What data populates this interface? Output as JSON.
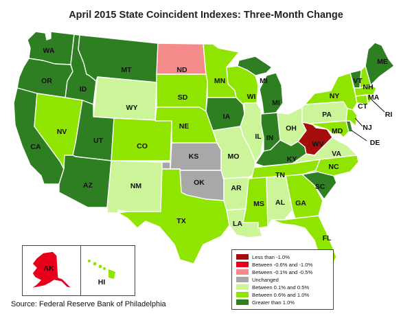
{
  "title": "April 2015 State Coincident Indexes: Three-Month Change",
  "source": "Source: Federal Reserve Bank of Philadelphia",
  "colors": {
    "lt_neg1": "#a50d0d",
    "neg06_neg1": "#e8001a",
    "neg01_neg05": "#f48a8a",
    "unchanged": "#a8a8a8",
    "pos01_05": "#ccf59a",
    "pos06_1": "#8fe400",
    "gt_1": "#2e7f22"
  },
  "legend": [
    {
      "key": "lt_neg1",
      "label": "Less than -1.0%"
    },
    {
      "key": "neg06_neg1",
      "label": "Between -0.6% and -1.0%"
    },
    {
      "key": "neg01_neg05",
      "label": "Between -0.1% and -0.5%"
    },
    {
      "key": "unchanged",
      "label": "Unchanged"
    },
    {
      "key": "pos01_05",
      "label": "Between 0.1% and 0.5%"
    },
    {
      "key": "pos06_1",
      "label": "Between 0.6% and 1.0%"
    },
    {
      "key": "gt_1",
      "label": "Greater than 1.0%"
    }
  ],
  "states": {
    "WA": "gt_1",
    "OR": "gt_1",
    "CA": "gt_1",
    "ID": "gt_1",
    "NV": "pos06_1",
    "MT": "gt_1",
    "WY": "pos01_05",
    "UT": "gt_1",
    "AZ": "gt_1",
    "CO": "pos06_1",
    "NM": "pos01_05",
    "ND": "neg01_neg05",
    "SD": "pos06_1",
    "NE": "pos06_1",
    "KS": "unchanged",
    "OK": "unchanged",
    "TX": "pos06_1",
    "MN": "pos06_1",
    "IA": "gt_1",
    "MO": "pos01_05",
    "AR": "pos01_05",
    "LA": "pos01_05",
    "WI": "pos06_1",
    "IL": "pos01_05",
    "MI": "gt_1",
    "IN": "gt_1",
    "OH": "pos01_05",
    "KY": "gt_1",
    "TN": "pos06_1",
    "MS": "pos06_1",
    "AL": "pos01_05",
    "GA": "pos06_1",
    "FL": "pos06_1",
    "SC": "gt_1",
    "NC": "pos06_1",
    "VA": "pos01_05",
    "WV": "lt_neg1",
    "PA": "pos01_05",
    "NY": "pos06_1",
    "MD": "pos06_1",
    "DE": "gt_1",
    "NJ": "pos06_1",
    "CT": "pos06_1",
    "RI": "pos06_1",
    "MA": "pos06_1",
    "VT": "gt_1",
    "NH": "pos06_1",
    "ME": "gt_1",
    "AK": "neg06_neg1",
    "HI": "pos06_1"
  },
  "labels": {
    "WA": "WA",
    "OR": "OR",
    "CA": "CA",
    "ID": "ID",
    "NV": "NV",
    "MT": "MT",
    "WY": "WY",
    "UT": "UT",
    "AZ": "AZ",
    "CO": "CO",
    "NM": "NM",
    "ND": "ND",
    "SD": "SD",
    "NE": "NE",
    "KS": "KS",
    "OK": "OK",
    "TX": "TX",
    "MN": "MN",
    "IA": "IA",
    "MO": "MO",
    "AR": "AR",
    "LA": "LA",
    "WI": "WI",
    "IL": "IL",
    "MI_UP": "MI",
    "MI": "MI",
    "IN": "IN",
    "OH": "OH",
    "KY": "KY",
    "TN": "TN",
    "MS": "MS",
    "AL": "AL",
    "GA": "GA",
    "FL": "FL",
    "SC": "SC",
    "NC": "NC",
    "VA": "VA",
    "WV": "WV",
    "PA": "PA",
    "NY": "NY",
    "MD": "MD",
    "DE": "DE",
    "NJ": "NJ",
    "CT": "CT",
    "RI": "RI",
    "MA": "MA",
    "VT": "VT",
    "NH": "NH",
    "ME": "ME",
    "AK": "AK",
    "HI": "HI"
  }
}
